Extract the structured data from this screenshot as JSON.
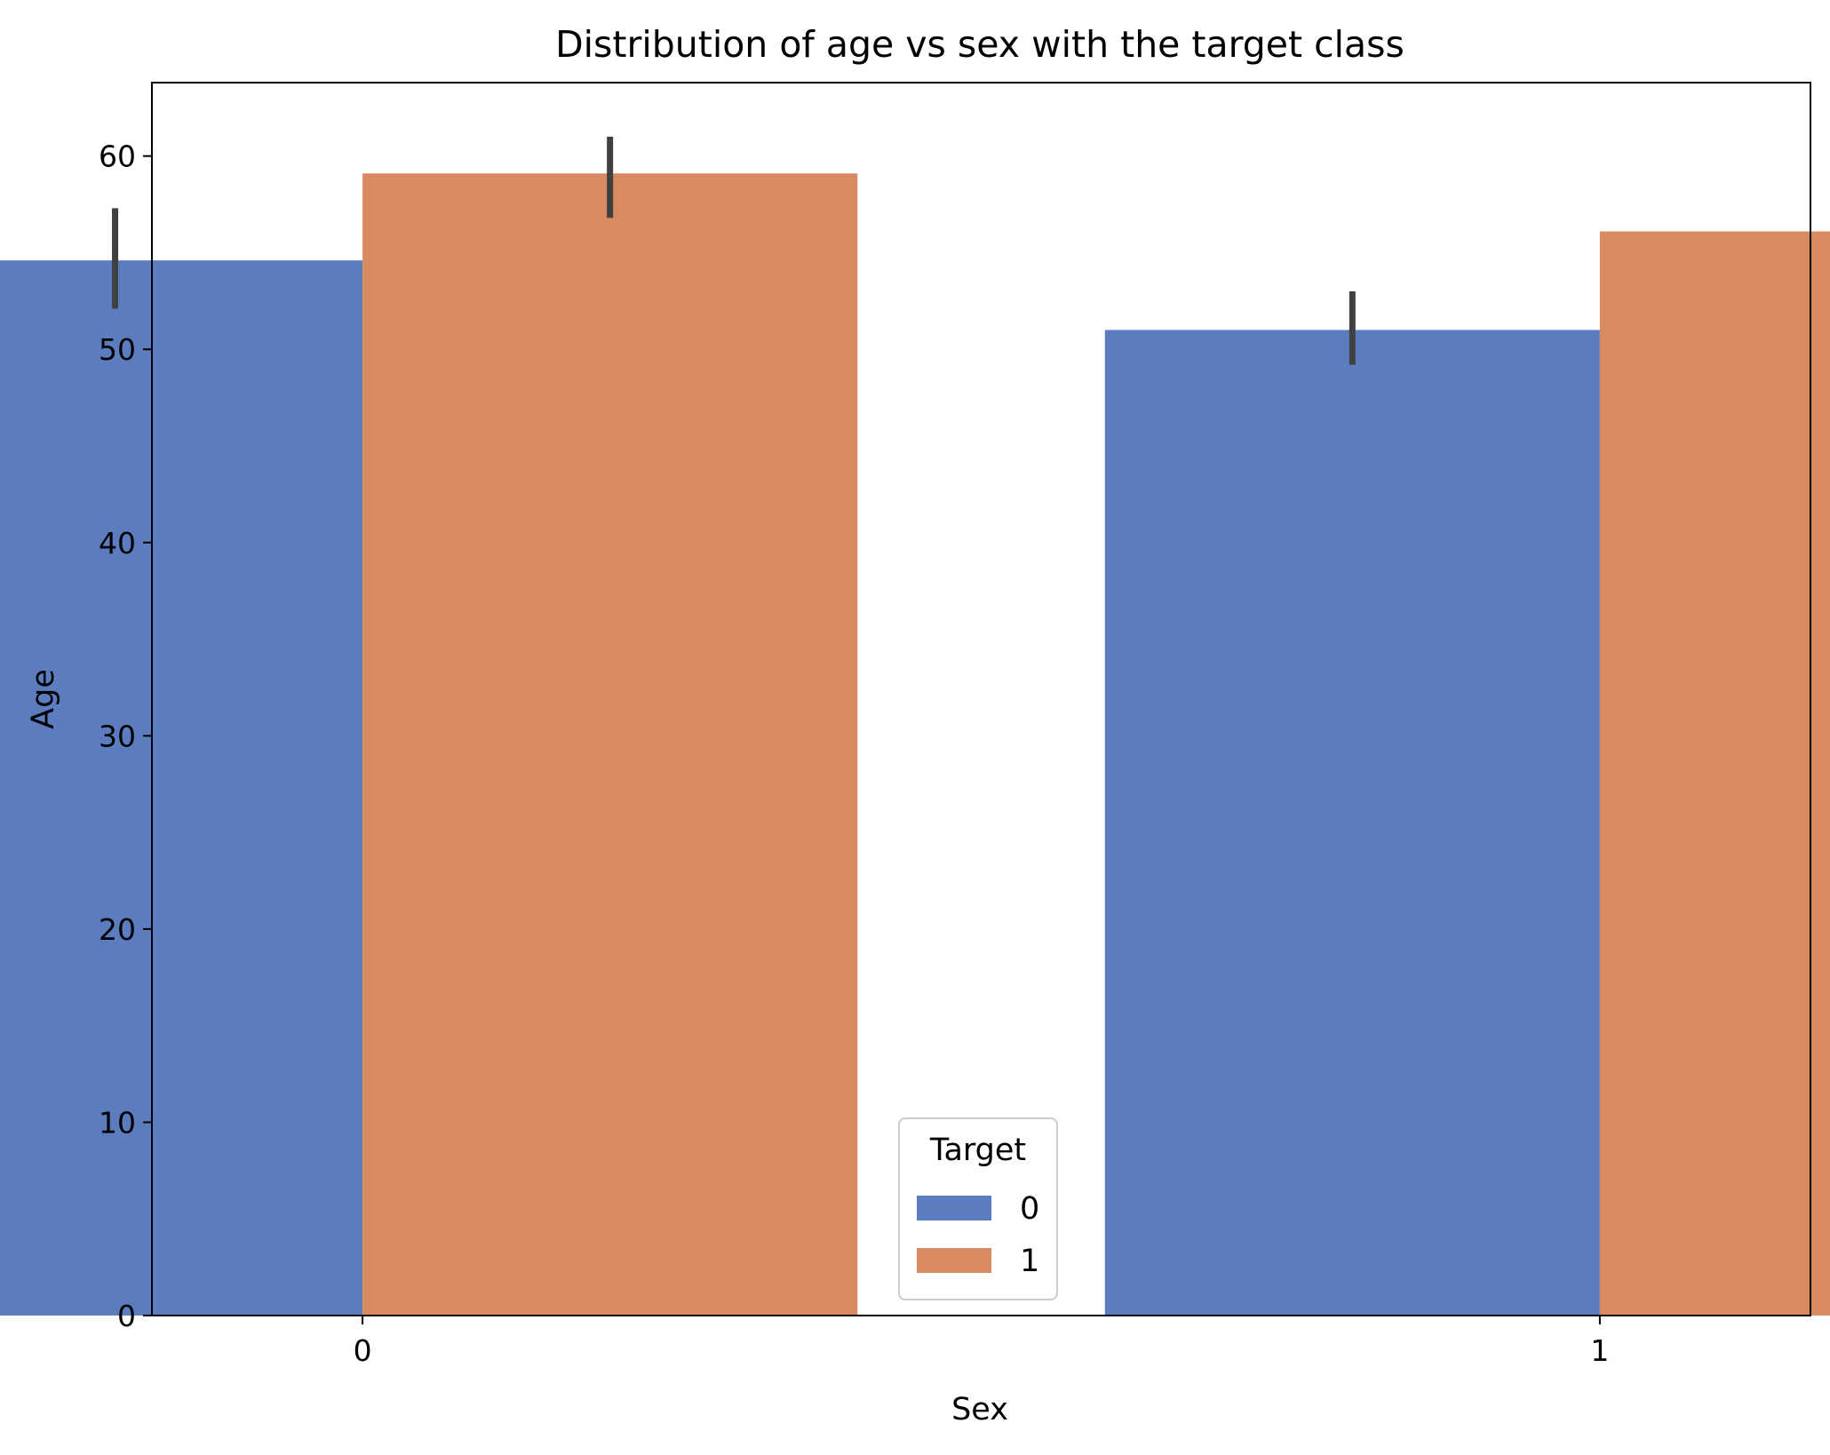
{
  "chart_data": {
    "type": "bar",
    "title": "Distribution of age vs sex with the target class",
    "xlabel": "Sex",
    "ylabel": "Age",
    "categories": [
      "0",
      "1"
    ],
    "series": [
      {
        "name": "0",
        "values": [
          54.6,
          51.0
        ],
        "error_low": [
          52.1,
          49.2
        ],
        "error_high": [
          57.3,
          53.0
        ],
        "color": "#5b7dbf"
      },
      {
        "name": "1",
        "values": [
          59.1,
          56.1
        ],
        "error_low": [
          56.8,
          54.4
        ],
        "error_high": [
          61.0,
          57.8
        ],
        "color": "#d88a60"
      }
    ],
    "ylim": [
      0,
      63.8
    ],
    "yticks": [
      0,
      10,
      20,
      30,
      40,
      50,
      60
    ],
    "grid": false,
    "legend": {
      "title": "Target",
      "placement": "lower center"
    },
    "errorbar_color": "#404040"
  }
}
